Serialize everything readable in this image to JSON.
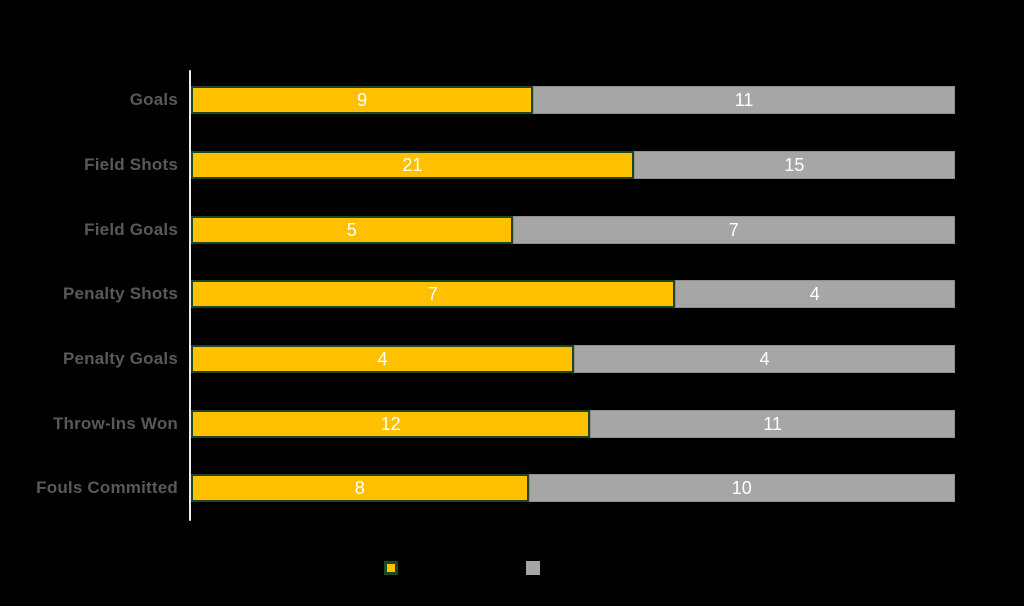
{
  "canvas": {
    "background_color": "#000000",
    "category_label_color": "#595959",
    "value_label_color": "#FFFFFF",
    "axis_line_color": "#EFEEEC"
  },
  "chart_data": {
    "type": "bar",
    "orientation": "horizontal",
    "stacked": true,
    "normalized_100_percent": true,
    "title": "",
    "xlabel": "",
    "ylabel": "",
    "grid": false,
    "categories": [
      "Goals",
      "Field Shots",
      "Field Goals",
      "Penalty Shots",
      "Penalty Goals",
      "Throw-Ins Won",
      "Fouls Committed"
    ],
    "series": [
      {
        "name": "gold-series",
        "fill_color": "#FFC000",
        "border_color": "#1E4620",
        "border_width_px": 2,
        "values": [
          9,
          21,
          5,
          7,
          4,
          12,
          8
        ]
      },
      {
        "name": "gray-series",
        "fill_color": "#A6A6A6",
        "border_color": "#8F8F8F",
        "border_width_px": 1,
        "values": [
          11,
          15,
          7,
          4,
          4,
          11,
          10
        ]
      }
    ],
    "value_labels": "centered-in-segment",
    "legend": {
      "position": "bottom",
      "swatches": [
        {
          "name": "gold-series",
          "fill_color": "#FFC000",
          "border_color": "#1E4620",
          "border_width_px": 3
        },
        {
          "name": "gray-series",
          "fill_color": "#A6A6A6",
          "border_color": "#A6A6A6",
          "border_width_px": 0
        }
      ]
    }
  }
}
